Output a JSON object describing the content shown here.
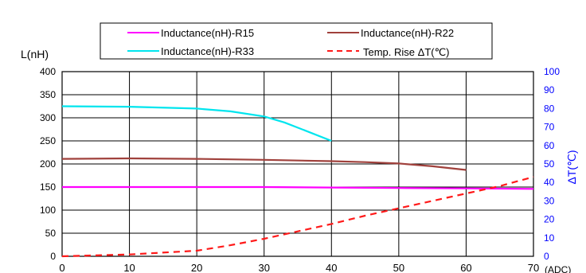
{
  "chart_data": {
    "type": "line",
    "ylabel": "L(nH)",
    "y2label": "ΔT(℃)",
    "xunit": "(ADC)",
    "xlim": [
      0,
      70
    ],
    "ylim": [
      0,
      400
    ],
    "y2lim": [
      0,
      100
    ],
    "x_ticks": [
      0,
      10,
      20,
      30,
      40,
      50,
      60,
      70
    ],
    "y_ticks": [
      0,
      50,
      100,
      150,
      200,
      250,
      300,
      350,
      400
    ],
    "y2_ticks": [
      0,
      10,
      20,
      30,
      40,
      50,
      60,
      70,
      80,
      90,
      100
    ],
    "grid": true,
    "legend_position": "top-center",
    "series": [
      {
        "name": "Inductance(nH)-R15",
        "axis": "left",
        "color": "#ff00ff",
        "dash": false,
        "x": [
          0,
          10,
          20,
          30,
          40,
          50,
          60,
          70
        ],
        "values": [
          150,
          150,
          150,
          150,
          149,
          148,
          147,
          146
        ]
      },
      {
        "name": "Inductance(nH)-R22",
        "axis": "left",
        "color": "#a0413c",
        "dash": false,
        "x": [
          0,
          10,
          20,
          30,
          40,
          45,
          50,
          55,
          60
        ],
        "values": [
          211,
          212,
          211,
          209,
          206,
          204,
          201,
          195,
          187
        ]
      },
      {
        "name": "Inductance(nH)-R33",
        "axis": "left",
        "color": "#00e5ee",
        "dash": false,
        "x": [
          0,
          10,
          20,
          25,
          30,
          33,
          36,
          40
        ],
        "values": [
          325,
          324,
          320,
          314,
          303,
          290,
          273,
          250
        ]
      },
      {
        "name": "Temp. Rise ΔT(℃)",
        "axis": "right",
        "color": "#ff1a1a",
        "dash": true,
        "x": [
          0,
          10,
          20,
          25,
          30,
          35,
          40,
          45,
          50,
          55,
          60,
          65,
          70
        ],
        "values": [
          0,
          1,
          3,
          6,
          9.5,
          13.5,
          17.5,
          22,
          26,
          30,
          34,
          38,
          43
        ]
      }
    ]
  }
}
